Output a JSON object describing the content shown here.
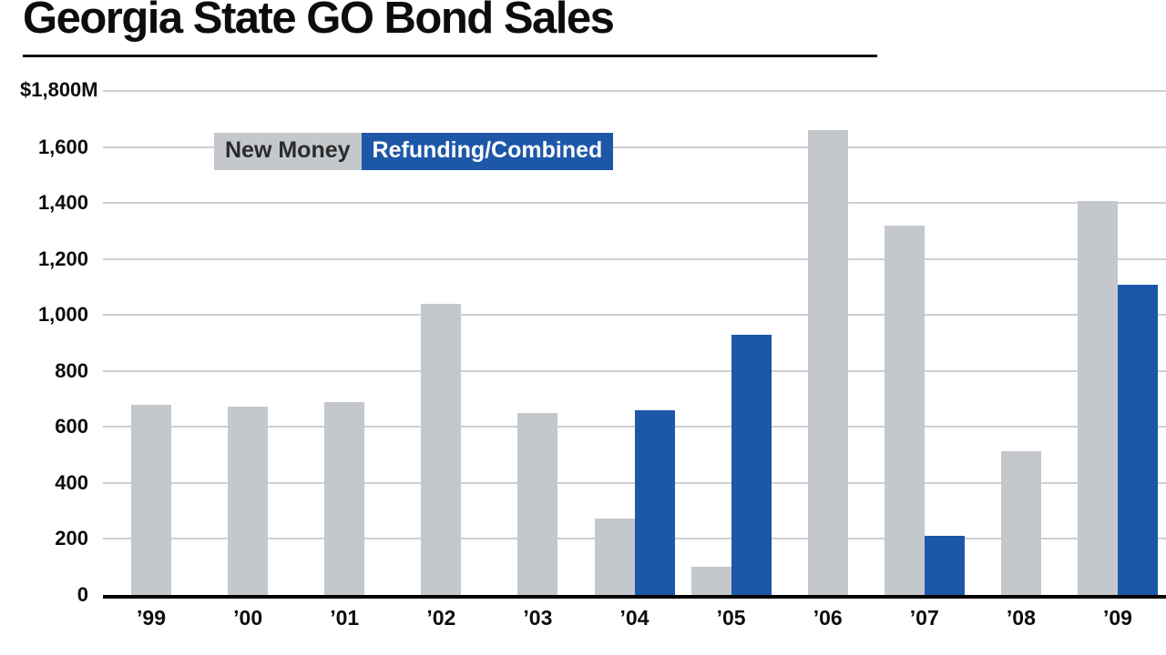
{
  "title": "Georgia State GO Bond Sales",
  "y_axis": {
    "max_label": "$1,800M"
  },
  "legend": {
    "new_money": "New Money",
    "refunding": "Refunding/Combined"
  },
  "chart_data": {
    "type": "bar",
    "title": "Georgia State GO Bond Sales",
    "categories": [
      "’99",
      "’00",
      "’01",
      "’02",
      "’03",
      "’04",
      "’05",
      "’06",
      "’07",
      "’08",
      "’09"
    ],
    "series": [
      {
        "name": "New Money",
        "key": "new-money",
        "color": "#c4c8cc",
        "values": [
          680,
          672,
          688,
          1040,
          650,
          272,
          100,
          1660,
          1318,
          515,
          1408
        ]
      },
      {
        "name": "Refunding/Combined",
        "key": "refunding-combined",
        "color": "#1d57a8",
        "values": [
          null,
          null,
          null,
          null,
          null,
          660,
          930,
          null,
          210,
          null,
          1108
        ]
      }
    ],
    "ylim": [
      0,
      1800
    ],
    "ytick_interval": 200,
    "yticks": [
      {
        "value": 1600,
        "label": "1,600"
      },
      {
        "value": 1400,
        "label": "1,400"
      },
      {
        "value": 1200,
        "label": "1,200"
      },
      {
        "value": 1000,
        "label": "1,000"
      },
      {
        "value": 800,
        "label": "800"
      },
      {
        "value": 600,
        "label": "600"
      },
      {
        "value": 400,
        "label": "400"
      },
      {
        "value": 200,
        "label": "200"
      },
      {
        "value": 0,
        "label": "0"
      }
    ],
    "grid": true,
    "legend_position": "top-left-inside"
  }
}
